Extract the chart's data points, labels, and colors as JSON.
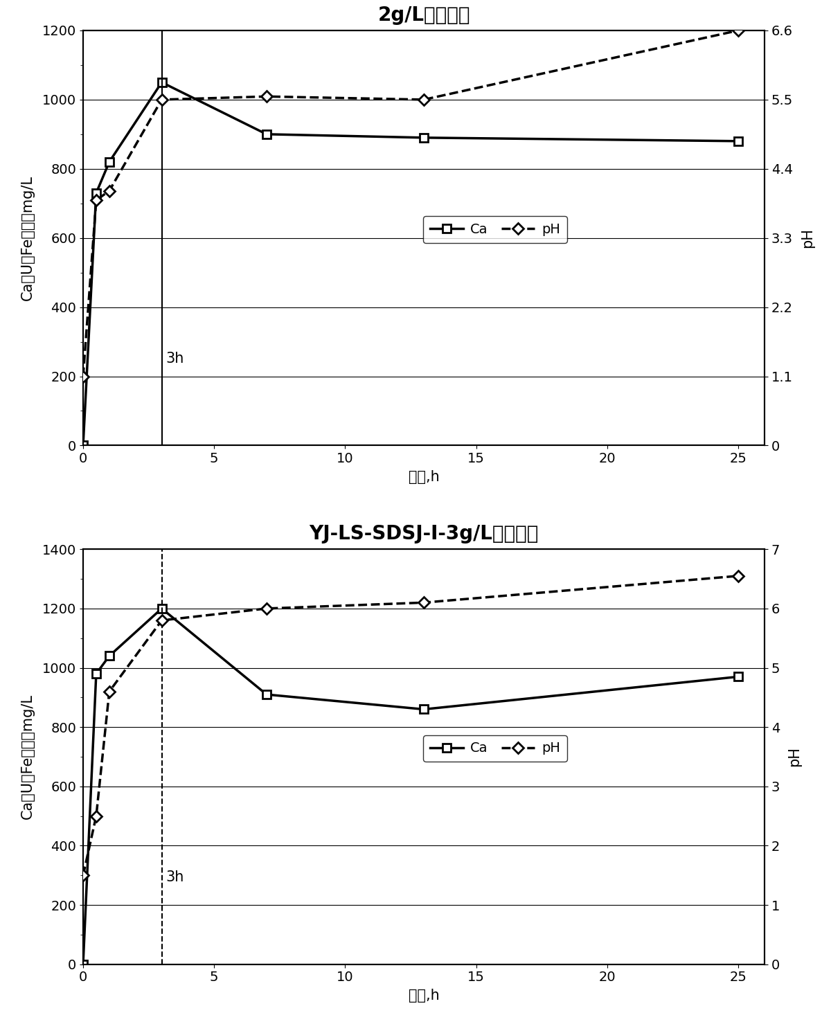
{
  "chart1": {
    "title": "2g/L硫酸溶液",
    "ca_x": [
      0,
      0.5,
      1,
      3,
      7,
      13,
      25
    ],
    "ca_y": [
      0,
      730,
      820,
      1050,
      900,
      890,
      880
    ],
    "ph_x": [
      0,
      0.5,
      1,
      3,
      7,
      13,
      25
    ],
    "ph_y": [
      1.1,
      3.9,
      4.05,
      5.5,
      5.55,
      5.5,
      6.6
    ],
    "vline_x": 3,
    "vline_label": "3h",
    "ylabel_left": "Ca、U、Fe含量，mg/L",
    "ylabel_right": "pH",
    "xlabel": "时间,h",
    "ylim_left": [
      0,
      1200
    ],
    "ylim_right": [
      0,
      6.6
    ],
    "yticks_left": [
      0,
      200,
      400,
      600,
      800,
      1000,
      1200
    ],
    "yticks_right": [
      0,
      1.1,
      2.2,
      3.3,
      4.4,
      5.5,
      6.6
    ],
    "ytick_labels_right": [
      "0",
      "1.1",
      "2.2",
      "3.3",
      "4.4",
      "5.5",
      "6.6"
    ],
    "xticks": [
      0,
      5,
      10,
      15,
      20,
      25
    ],
    "vline_solid": true
  },
  "chart2": {
    "title": "YJ-LS-SDSJ-Ⅰ-3g/L硫酸溶液",
    "ca_x": [
      0,
      0.5,
      1,
      3,
      7,
      13,
      25
    ],
    "ca_y": [
      0,
      980,
      1040,
      1200,
      910,
      860,
      970
    ],
    "ph_x": [
      0,
      0.5,
      1,
      3,
      7,
      13,
      25
    ],
    "ph_y": [
      1.5,
      2.5,
      4.6,
      5.8,
      6.0,
      6.1,
      6.55
    ],
    "vline_x": 3,
    "vline_label": "3h",
    "ylabel_left": "Ca、U、Fe含量，mg/L",
    "ylabel_right": "pH",
    "xlabel": "时间,h",
    "ylim_left": [
      0,
      1400
    ],
    "ylim_right": [
      0,
      7
    ],
    "yticks_left": [
      0,
      200,
      400,
      600,
      800,
      1000,
      1200,
      1400
    ],
    "yticks_right": [
      0,
      1,
      2,
      3,
      4,
      5,
      6,
      7
    ],
    "ytick_labels_right": [
      "0",
      "1",
      "2",
      "3",
      "4",
      "5",
      "6",
      "7"
    ],
    "xticks": [
      0,
      5,
      10,
      15,
      20,
      25
    ],
    "vline_solid": false
  },
  "legend_ca_label": "Ca",
  "legend_ph_label": "pH",
  "line_color": "black",
  "line_width": 2.5,
  "marker_ca": "s",
  "marker_ph": "D",
  "marker_size": 8,
  "background_color": "white",
  "grid_color": "#888888",
  "title_fontsize": 20,
  "label_fontsize": 15,
  "tick_fontsize": 14,
  "legend_fontsize": 14
}
